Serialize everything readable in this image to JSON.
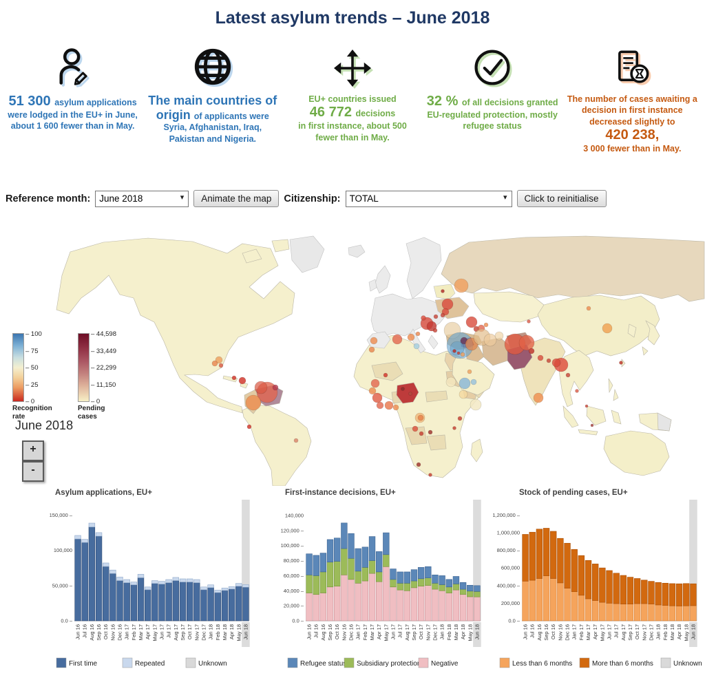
{
  "title": "Latest asylum trends – June 2018",
  "stats": [
    {
      "icon": "person-pencil-icon",
      "segments": [
        {
          "t": "51 300 ",
          "big": true
        },
        {
          "t": "asylum applications were lodged in the EU+ in June, about 1 600 fewer than in May."
        }
      ]
    },
    {
      "icon": "globe-icon",
      "segments": [
        {
          "t": "The main countries of origin ",
          "big": true
        },
        {
          "t": "of applicants were Syria, Afghanistan, Iraq, Pakistan and Nigeria."
        }
      ]
    },
    {
      "icon": "arrows-move-icon",
      "segments": [
        {
          "t": "EU+ countries issued",
          "block": true
        },
        {
          "t": "46 772 ",
          "big": true
        },
        {
          "t": "decisions"
        },
        {
          "t": "in first instance, about 500 fewer than in May.",
          "block": true
        }
      ]
    },
    {
      "icon": "check-circle-icon",
      "segments": [
        {
          "t": "32 % ",
          "big": true
        },
        {
          "t": "of all decisions granted EU-regulated protection, mostly refugee status"
        }
      ]
    },
    {
      "icon": "document-hourglass-icon",
      "segments": [
        {
          "t": "The number of cases awaiting a decision in first instance decreased slightly to"
        },
        {
          "t": "420 238,",
          "big": true,
          "block": true
        },
        {
          "t": "3 000 fewer than in May.",
          "block": true
        }
      ]
    }
  ],
  "controls": {
    "reference_month_label": "Reference month:",
    "reference_month_value": "June 2018",
    "animate_button": "Animate the map",
    "citizenship_label": "Citizenship:",
    "citizenship_value": "TOTAL",
    "reset_button": "Click to reinitialise"
  },
  "map": {
    "date_label": "June 2018",
    "zoom_in": "+",
    "zoom_out": "-",
    "legend_recognition": {
      "title": "Recognition rate",
      "ticks": [
        "100",
        "75",
        "50",
        "25",
        "0"
      ]
    },
    "legend_pending": {
      "title": "Pending cases",
      "ticks": [
        "44,598",
        "33,449",
        "22,299",
        "11,150",
        "0"
      ]
    },
    "bubbles": [
      [
        388,
        232,
        15,
        "#E2654E",
        0.78
      ],
      [
        379,
        225,
        9,
        "#DA5843",
        0.7
      ],
      [
        368,
        247,
        11,
        "#EC8C4E",
        0.8
      ],
      [
        352,
        215,
        5,
        "#D23B30",
        0.85
      ],
      [
        340,
        211,
        3,
        "#D23B30",
        0.85
      ],
      [
        400,
        225,
        4,
        "#B33A4D",
        0.8
      ],
      [
        318,
        185,
        5,
        "#EE9F5D",
        0.8
      ],
      [
        312,
        190,
        4,
        "#E8854C",
        0.8
      ],
      [
        321,
        193,
        3,
        "#DA5843",
        0.8
      ],
      [
        362,
        282,
        3,
        "#D23B30",
        0.85
      ],
      [
        430,
        302,
        3,
        "#DB8A6E",
        0.85
      ],
      [
        545,
        219,
        6,
        "#E2674D",
        0.8
      ],
      [
        541,
        230,
        5,
        "#ED8B4E",
        0.8
      ],
      [
        548,
        240,
        7,
        "#E05A41",
        0.8
      ],
      [
        552,
        251,
        5,
        "#E2674D",
        0.8
      ],
      [
        565,
        251,
        6,
        "#E8764A",
        0.8
      ],
      [
        575,
        254,
        4,
        "#ED8B4E",
        0.8
      ],
      [
        560,
        207,
        3,
        "#D23B30",
        0.85
      ],
      [
        585,
        227,
        2.5,
        "#8B2F2F",
        0.85
      ],
      [
        596,
        234,
        2.5,
        "#B3483F",
        0.85
      ],
      [
        610,
        269,
        7,
        "#F0A35E",
        0.6
      ],
      [
        611,
        269,
        4,
        "#E8854C",
        0.85
      ],
      [
        603,
        285,
        4,
        "#DA5843",
        0.85
      ],
      [
        612,
        292,
        3,
        "#C74436",
        0.85
      ],
      [
        625,
        290,
        3,
        "#A13A33",
        0.85
      ],
      [
        608,
        337,
        3,
        "#A13A33",
        0.85
      ],
      [
        625,
        352,
        2.5,
        "#C74436",
        0.85
      ],
      [
        668,
        270,
        3,
        "#C74436",
        0.85
      ],
      [
        660,
        284,
        2.5,
        "#C74436",
        0.85
      ],
      [
        543,
        157,
        5,
        "#ED8B4E",
        0.8
      ],
      [
        540,
        170,
        4,
        "#E8854C",
        0.8
      ],
      [
        577,
        155,
        7,
        "#E2674D",
        0.8
      ],
      [
        597,
        152,
        5,
        "#ED8B4E",
        0.8
      ],
      [
        607,
        147,
        3,
        "#E8854C",
        0.8
      ],
      [
        605,
        165,
        4,
        "#A9D0DF",
        0.85
      ],
      [
        655,
        217,
        7,
        "#F3E6BE",
        0.85
      ],
      [
        675,
        219,
        8,
        "#7FB2D8",
        0.75
      ],
      [
        688,
        217,
        4,
        "#8FBEDD",
        0.75
      ],
      [
        673,
        235,
        6,
        "#F5D9A0",
        0.8
      ],
      [
        691,
        250,
        8,
        "#F3E9C4",
        0.85
      ],
      [
        682,
        202,
        3,
        "#EE9F5D",
        0.8
      ],
      [
        620,
        132,
        9,
        "#D84B3C",
        0.8
      ],
      [
        627,
        136,
        7,
        "#C43A32",
        0.8
      ],
      [
        615,
        124,
        3.5,
        "#D84B3C",
        0.8
      ],
      [
        633,
        122,
        3,
        "#C74436",
        0.8
      ],
      [
        632,
        142,
        3,
        "#C74436",
        0.8
      ],
      [
        650,
        104,
        8,
        "#D84B3C",
        0.8
      ],
      [
        647,
        115,
        5,
        "#D84B3C",
        0.8
      ],
      [
        643,
        85,
        2.5,
        "#B3312B",
        0.85
      ],
      [
        643,
        120,
        3,
        "#C74436",
        0.8
      ],
      [
        670,
        77,
        10,
        "#F09B57",
        0.75
      ],
      [
        685,
        130,
        8,
        "#D84B3C",
        0.8
      ],
      [
        692,
        140,
        4,
        "#C74436",
        0.8
      ],
      [
        699,
        139,
        5,
        "#E2674D",
        0.8
      ],
      [
        706,
        134,
        3,
        "#ED8B4E",
        0.8
      ],
      [
        657,
        142,
        12,
        "#E8CEA4",
        0.7
      ],
      [
        668,
        164,
        19,
        "#6FA8D0",
        0.65
      ],
      [
        664,
        168,
        10,
        "#5E9BC8",
        0.45
      ],
      [
        674,
        157,
        5,
        "#6B3A5B",
        0.85
      ],
      [
        660,
        172,
        2.5,
        "#B3312B",
        0.85
      ],
      [
        666,
        175,
        2,
        "#C74436",
        0.85
      ],
      [
        672,
        177,
        3,
        "#EE9F5D",
        0.8
      ],
      [
        685,
        162,
        9,
        "#E0854E",
        0.75
      ],
      [
        700,
        152,
        12,
        "#E3BE8C",
        0.7
      ],
      [
        712,
        156,
        9,
        "#ECCB9C",
        0.7
      ],
      [
        725,
        150,
        6,
        "#EFD4A8",
        0.7
      ],
      [
        748,
        162,
        15,
        "#E05A41",
        0.78
      ],
      [
        765,
        160,
        11,
        "#E26247",
        0.78
      ],
      [
        772,
        172,
        4,
        "#C03A30",
        0.85
      ],
      [
        785,
        182,
        4,
        "#D84B3C",
        0.8
      ],
      [
        797,
        186,
        3,
        "#C74436",
        0.8
      ],
      [
        815,
        192,
        10,
        "#DD4B3A",
        0.8
      ],
      [
        808,
        189,
        6,
        "#D84B3C",
        0.8
      ],
      [
        782,
        240,
        7,
        "#EE9355",
        0.85
      ],
      [
        825,
        207,
        3,
        "#C74436",
        0.8
      ],
      [
        838,
        230,
        2.5,
        "#DA5843",
        0.8
      ],
      [
        882,
        139,
        7,
        "#F0A050",
        0.8
      ],
      [
        855,
        110,
        3,
        "#ED8B4E",
        0.8
      ],
      [
        902,
        189,
        2.5,
        "#C0392B",
        0.85
      ],
      [
        768,
        129,
        2.5,
        "#DA5843",
        0.8
      ],
      [
        852,
        252,
        2,
        "#C74436",
        0.8
      ],
      [
        860,
        280,
        2,
        "#A13A33",
        0.8
      ]
    ]
  },
  "chart_data": [
    {
      "type": "bar",
      "stacked": true,
      "title": "Asylum applications, EU+",
      "categories": [
        "Jun 16",
        "Jul 16",
        "Aug 16",
        "Sep 16",
        "Oct 16",
        "Nov 16",
        "Dec 16",
        "Jan 17",
        "Feb 17",
        "Mar 17",
        "Apr 17",
        "May 17",
        "Jun 17",
        "Jul 17",
        "Aug 17",
        "Sep 17",
        "Oct 17",
        "Nov 17",
        "Dec 17",
        "Jan 18",
        "Feb 18",
        "Mar 18",
        "Apr 18",
        "May 18",
        "Jun 18"
      ],
      "series": [
        {
          "name": "First time",
          "color": "#476C9E",
          "stroke": "#2F4A73",
          "values": [
            116000,
            111000,
            133000,
            120000,
            77000,
            67000,
            57000,
            54000,
            51000,
            61000,
            44000,
            53000,
            52000,
            54000,
            57000,
            55000,
            55000,
            54000,
            44000,
            47000,
            40000,
            43000,
            45000,
            49000,
            47600
          ]
        },
        {
          "name": "Repeated",
          "color": "#C9D8ED",
          "stroke": "#8FA8C8",
          "values": [
            5000,
            4500,
            5500,
            5000,
            5000,
            5000,
            5000,
            4500,
            4000,
            5000,
            4000,
            4000,
            4000,
            4500,
            4500,
            4500,
            4500,
            4500,
            4000,
            4000,
            3500,
            3500,
            3500,
            4000,
            3700
          ]
        },
        {
          "name": "Unknown",
          "color": "#D9D9D9",
          "stroke": "#BFBFBF",
          "values": [
            0,
            0,
            0,
            0,
            0,
            0,
            0,
            0,
            0,
            0,
            0,
            0,
            0,
            0,
            0,
            0,
            0,
            0,
            0,
            0,
            0,
            0,
            0,
            0,
            0
          ]
        }
      ],
      "legend": [
        {
          "label": "First time",
          "color": "#476C9E"
        },
        {
          "label": "Repeated",
          "color": "#C9D8ED"
        },
        {
          "label": "Unknown",
          "color": "#D9D9D9"
        }
      ],
      "ylim": [
        0,
        160000
      ],
      "yticks": [
        {
          "v": 0,
          "label": "0.0 –"
        },
        {
          "v": 50000,
          "label": "50,000 –"
        },
        {
          "v": 100000,
          "label": "100,000"
        },
        {
          "v": 150000,
          "label": "150,000 –"
        }
      ],
      "highlight_last": true
    },
    {
      "type": "bar",
      "stacked": true,
      "title": "First-instance decisions, EU+",
      "categories": [
        "Jun 16",
        "Jul 16",
        "Aug 16",
        "Sep 16",
        "Oct 16",
        "Nov 16",
        "Dec 16",
        "Jan 17",
        "Feb 17",
        "Mar 17",
        "Apr 17",
        "May 17",
        "Jun 17",
        "Jul 17",
        "Aug 17",
        "Sep 17",
        "Oct 17",
        "Nov 17",
        "Dec 17",
        "Jan 18",
        "Feb 18",
        "Mar 18",
        "Apr 18",
        "May 18",
        "Jun 18"
      ],
      "series": [
        {
          "name": "Negative",
          "color": "#F0BEC2",
          "stroke": "#C98F95",
          "values": [
            37000,
            35000,
            37000,
            45000,
            46000,
            61000,
            55000,
            50000,
            53000,
            63000,
            52000,
            72000,
            45000,
            41000,
            40000,
            44000,
            46000,
            47000,
            42000,
            40000,
            37000,
            41000,
            35000,
            32000,
            31800
          ]
        },
        {
          "name": "Subsidiary protection",
          "color": "#9CBB59",
          "stroke": "#74923B",
          "values": [
            24000,
            25000,
            28000,
            33000,
            33000,
            35000,
            28000,
            16000,
            18000,
            17000,
            13000,
            16000,
            10000,
            9000,
            10000,
            9000,
            10000,
            10000,
            8000,
            8000,
            8000,
            8000,
            7000,
            7500,
            7200
          ]
        },
        {
          "name": "Refugee status",
          "color": "#5B87B8",
          "stroke": "#3E6491",
          "values": [
            28000,
            27000,
            25000,
            30000,
            31000,
            34000,
            33000,
            30000,
            27000,
            32000,
            27000,
            29000,
            14000,
            15000,
            15000,
            15000,
            15000,
            15000,
            11000,
            12000,
            10000,
            10000,
            9000,
            7800,
            7800
          ]
        }
      ],
      "legend": [
        {
          "label": "Refugee status",
          "color": "#5B87B8"
        },
        {
          "label": "Subsidiary protection",
          "color": "#9CBB59"
        },
        {
          "label": "Negative",
          "color": "#F0BEC2"
        }
      ],
      "ylim": [
        0,
        150000
      ],
      "yticks": [
        {
          "v": 0,
          "label": "0.0 –"
        },
        {
          "v": 20000,
          "label": "20,000 –"
        },
        {
          "v": 40000,
          "label": "40,000 –"
        },
        {
          "v": 60000,
          "label": "60,000 –"
        },
        {
          "v": 80000,
          "label": "80,000 –"
        },
        {
          "v": 100000,
          "label": "100,000 –"
        },
        {
          "v": 120000,
          "label": "120,000 –"
        },
        {
          "v": 140000,
          "label": "140,000"
        }
      ],
      "highlight_last": true
    },
    {
      "type": "bar",
      "stacked": true,
      "title": "Stock of pending cases, EU+",
      "categories": [
        "Jun 16",
        "Jul 16",
        "Aug 16",
        "Sep 16",
        "Oct 16",
        "Nov 16",
        "Dec 16",
        "Jan 17",
        "Feb 17",
        "Mar 17",
        "Apr 17",
        "May 17",
        "Jun 17",
        "Jul 17",
        "Aug 17",
        "Sep 17",
        "Oct 17",
        "Nov 17",
        "Dec 17",
        "Jan 18",
        "Feb 18",
        "Mar 18",
        "Apr 18",
        "May 18",
        "Jun 18"
      ],
      "series": [
        {
          "name": "Less than 6 months",
          "color": "#F5A45C",
          "stroke": "#D97E2E",
          "values": [
            450000,
            460000,
            480000,
            510000,
            480000,
            430000,
            370000,
            330000,
            290000,
            250000,
            230000,
            210000,
            200000,
            195000,
            190000,
            190000,
            195000,
            195000,
            190000,
            180000,
            175000,
            170000,
            168000,
            170000,
            172000
          ]
        },
        {
          "name": "More than 6 months",
          "color": "#D2690F",
          "stroke": "#A84F08",
          "values": [
            530000,
            545000,
            560000,
            540000,
            535000,
            505000,
            510000,
            480000,
            450000,
            435000,
            415000,
            390000,
            370000,
            345000,
            325000,
            305000,
            285000,
            267000,
            258000,
            255000,
            252000,
            252000,
            252000,
            253000,
            248000
          ]
        },
        {
          "name": "Unknown",
          "color": "#D9D9D9",
          "stroke": "#BFBFBF",
          "values": [
            0,
            0,
            0,
            0,
            0,
            0,
            0,
            0,
            0,
            0,
            0,
            0,
            0,
            0,
            0,
            0,
            0,
            0,
            0,
            0,
            0,
            0,
            0,
            0,
            0
          ]
        }
      ],
      "legend": [
        {
          "label": "Less than 6 months",
          "color": "#F5A45C"
        },
        {
          "label": "More than 6 months",
          "color": "#D2690F"
        },
        {
          "label": "Unknown",
          "color": "#D9D9D9"
        }
      ],
      "ylim": [
        0,
        1280000
      ],
      "yticks": [
        {
          "v": 0,
          "label": "0.0 –"
        },
        {
          "v": 200000,
          "label": "200,000"
        },
        {
          "v": 400000,
          "label": "400,000 –"
        },
        {
          "v": 600000,
          "label": "600,000"
        },
        {
          "v": 800000,
          "label": "800,000 –"
        },
        {
          "v": 1000000,
          "label": "1,000,000"
        },
        {
          "v": 1200000,
          "label": "1,200,000 –"
        }
      ],
      "highlight_last": true
    }
  ]
}
